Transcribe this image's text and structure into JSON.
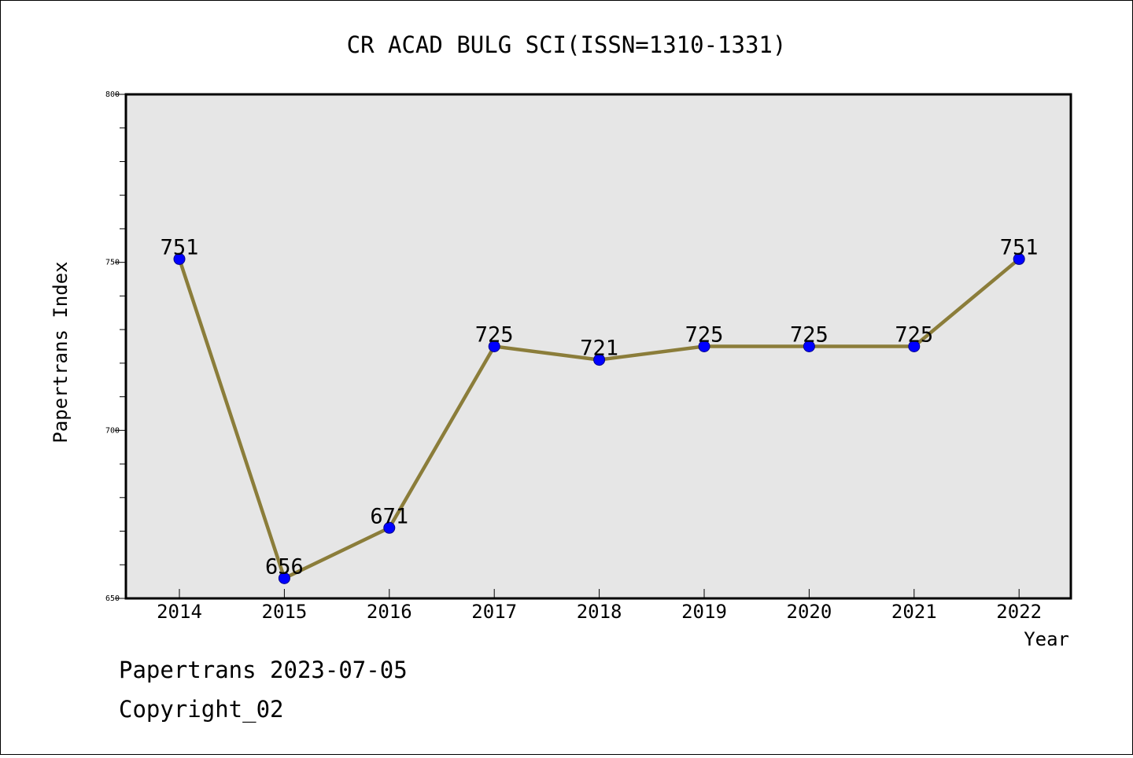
{
  "chart_data": {
    "type": "line",
    "title": "CR ACAD BULG SCI(ISSN=1310-1331)",
    "xlabel": "Year",
    "ylabel": "Papertrans Index",
    "categories": [
      "2014",
      "2015",
      "2016",
      "2017",
      "2018",
      "2019",
      "2020",
      "2021",
      "2022"
    ],
    "series": [
      {
        "values": [
          751,
          656,
          671,
          725,
          721,
          725,
          725,
          725,
          751
        ]
      }
    ],
    "data_labels": [
      "751",
      "656",
      "671",
      "725",
      "721",
      "725",
      "725",
      "725",
      "751"
    ],
    "ylim": [
      650,
      800
    ],
    "yticks": [
      650,
      700,
      750,
      800
    ],
    "ytick_labels": [
      "650",
      "700",
      "750",
      "800"
    ],
    "grid": false,
    "legend": "none",
    "colors": {
      "line": "#8b7d3a",
      "marker": "#0000ff",
      "plot_background": "#e6e6e6"
    }
  },
  "footer": {
    "line1": "Papertrans 2023-07-05",
    "line2": "Copyright_02"
  }
}
